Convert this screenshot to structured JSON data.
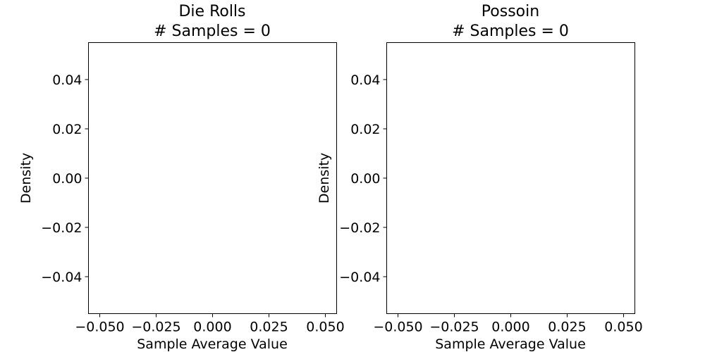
{
  "chart_data": [
    {
      "type": "bar",
      "title": "Die Rolls",
      "subtitle": "# Samples = 0",
      "xlabel": "Sample Average Value",
      "ylabel": "Density",
      "xlim": [
        -0.055,
        0.055
      ],
      "ylim": [
        -0.055,
        0.055
      ],
      "xticks": [
        -0.05,
        -0.025,
        0.0,
        0.025,
        0.05
      ],
      "xtick_labels": [
        "−0.050",
        "−0.025",
        "0.000",
        "0.025",
        "0.050"
      ],
      "yticks": [
        0.04,
        0.02,
        0.0,
        -0.02,
        -0.04
      ],
      "ytick_labels": [
        "0.04",
        "0.02",
        "0.00",
        "−0.02",
        "−0.04"
      ],
      "grid": false,
      "values": []
    },
    {
      "type": "bar",
      "title": "Possoin",
      "subtitle": "# Samples = 0",
      "xlabel": "Sample Average Value",
      "ylabel": "Density",
      "xlim": [
        -0.055,
        0.055
      ],
      "ylim": [
        -0.055,
        0.055
      ],
      "xticks": [
        -0.05,
        -0.025,
        0.0,
        0.025,
        0.05
      ],
      "xtick_labels": [
        "−0.050",
        "−0.025",
        "0.000",
        "0.025",
        "0.050"
      ],
      "yticks": [
        0.04,
        0.02,
        0.0,
        -0.02,
        -0.04
      ],
      "ytick_labels": [
        "0.04",
        "0.02",
        "0.00",
        "−0.02",
        "−0.04"
      ],
      "grid": false,
      "values": []
    }
  ]
}
